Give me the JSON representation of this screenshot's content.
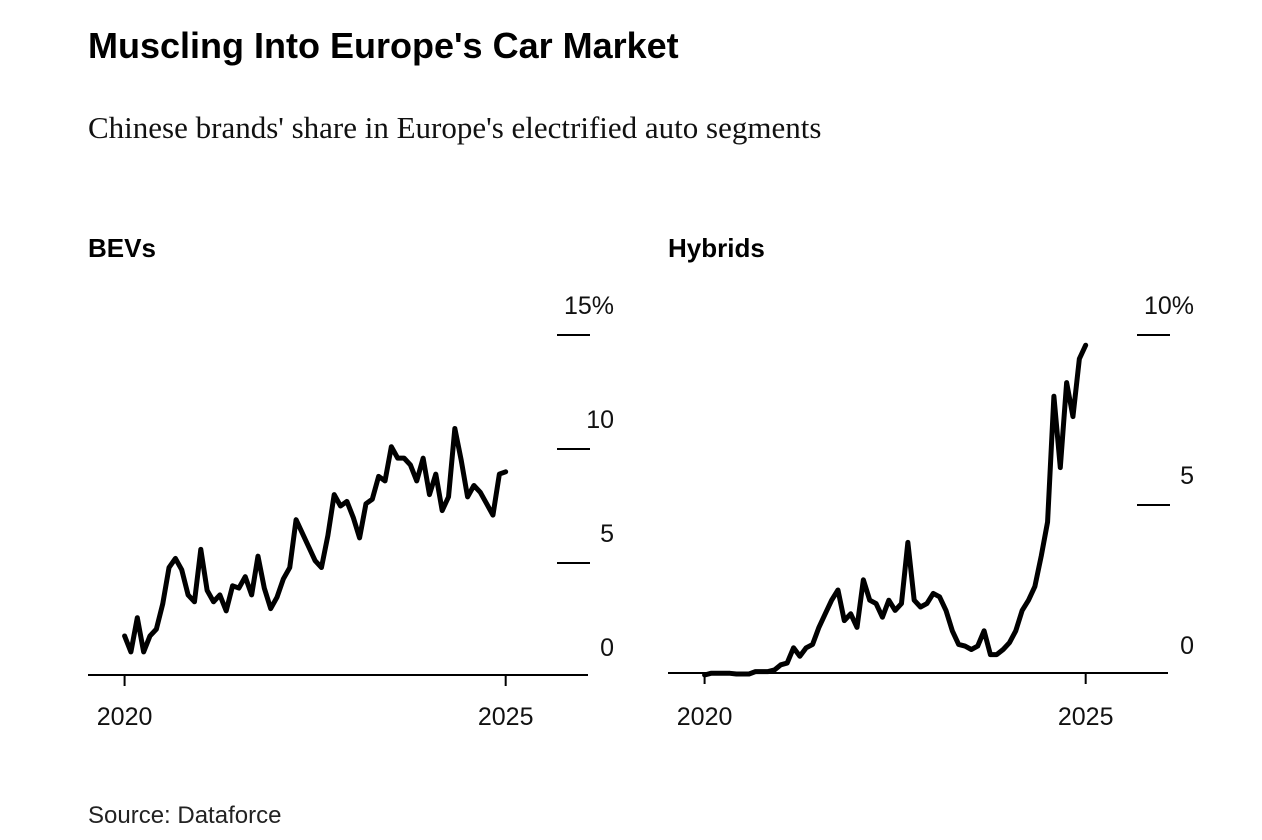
{
  "title": "Muscling Into Europe's Car Market",
  "subtitle": "Chinese brands' share in Europe's electrified auto segments",
  "source": "Source: Dataforce",
  "chart_data": [
    {
      "type": "line",
      "title": "BEVs",
      "color": "#000000",
      "xlim": [
        2019.52,
        2026.08
      ],
      "xticks": [
        2020,
        2025
      ],
      "ylim": [
        0,
        15
      ],
      "yticks": [
        0,
        5,
        10,
        {
          "value": 15,
          "label": "15%"
        }
      ],
      "x": [
        2020,
        2020.083,
        2020.167,
        2020.25,
        2020.333,
        2020.417,
        2020.5,
        2020.583,
        2020.667,
        2020.75,
        2020.833,
        2020.917,
        2021,
        2021.083,
        2021.167,
        2021.25,
        2021.333,
        2021.417,
        2021.5,
        2021.583,
        2021.667,
        2021.75,
        2021.833,
        2021.917,
        2022,
        2022.083,
        2022.167,
        2022.25,
        2022.333,
        2022.417,
        2022.5,
        2022.583,
        2022.667,
        2022.75,
        2022.833,
        2022.917,
        2023,
        2023.083,
        2023.167,
        2023.25,
        2023.333,
        2023.417,
        2023.5,
        2023.583,
        2023.667,
        2023.75,
        2023.833,
        2023.917,
        2024,
        2024.083,
        2024.167,
        2024.25,
        2024.333,
        2024.417,
        2024.5,
        2024.583,
        2024.667,
        2024.75,
        2024.833,
        2024.917,
        2025
      ],
      "series": [
        {
          "name": "BEVs",
          "color": "#000000",
          "values": [
            1.8,
            1.1,
            2.6,
            1.1,
            1.8,
            2.1,
            3.2,
            4.8,
            5.2,
            4.7,
            3.6,
            3.3,
            5.6,
            3.8,
            3.3,
            3.6,
            2.9,
            4.0,
            3.9,
            4.4,
            3.6,
            5.3,
            3.9,
            3.0,
            3.5,
            4.3,
            4.8,
            6.9,
            6.3,
            5.7,
            5.1,
            4.8,
            6.2,
            8.0,
            7.5,
            7.7,
            7.0,
            6.1,
            7.6,
            7.8,
            8.8,
            8.6,
            10.1,
            9.6,
            9.6,
            9.3,
            8.6,
            9.6,
            8.0,
            8.9,
            7.3,
            7.9,
            10.9,
            9.5,
            7.9,
            8.4,
            8.1,
            7.6,
            7.1,
            8.9,
            9.0
          ]
        }
      ]
    },
    {
      "type": "line",
      "title": "Hybrids",
      "color": "#000000",
      "xlim": [
        2019.52,
        2026.08
      ],
      "xticks": [
        2020,
        2025
      ],
      "ylim": [
        0,
        10
      ],
      "yticks": [
        0,
        5,
        {
          "value": 10,
          "label": "10%"
        }
      ],
      "x": [
        2020,
        2020.083,
        2020.167,
        2020.25,
        2020.333,
        2020.417,
        2020.5,
        2020.583,
        2020.667,
        2020.75,
        2020.833,
        2020.917,
        2021,
        2021.083,
        2021.167,
        2021.25,
        2021.333,
        2021.417,
        2021.5,
        2021.583,
        2021.667,
        2021.75,
        2021.833,
        2021.917,
        2022,
        2022.083,
        2022.167,
        2022.25,
        2022.333,
        2022.417,
        2022.5,
        2022.583,
        2022.667,
        2022.75,
        2022.833,
        2022.917,
        2023,
        2023.083,
        2023.167,
        2023.25,
        2023.333,
        2023.417,
        2023.5,
        2023.583,
        2023.667,
        2023.75,
        2023.833,
        2023.917,
        2024,
        2024.083,
        2024.167,
        2024.25,
        2024.333,
        2024.417,
        2024.5,
        2024.583,
        2024.667,
        2024.75,
        2024.833,
        2024.917,
        2025
      ],
      "series": [
        {
          "name": "Hybrids",
          "color": "#000000",
          "values": [
            0,
            0.05,
            0.05,
            0.05,
            0.05,
            0.03,
            0.03,
            0.03,
            0.1,
            0.1,
            0.1,
            0.15,
            0.3,
            0.35,
            0.8,
            0.55,
            0.8,
            0.9,
            1.4,
            1.8,
            2.2,
            2.5,
            1.6,
            1.8,
            1.4,
            2.8,
            2.2,
            2.1,
            1.7,
            2.2,
            1.9,
            2.1,
            3.9,
            2.2,
            2.0,
            2.1,
            2.4,
            2.3,
            1.9,
            1.3,
            0.9,
            0.85,
            0.75,
            0.85,
            1.3,
            0.6,
            0.6,
            0.75,
            0.95,
            1.3,
            1.9,
            2.2,
            2.6,
            3.5,
            4.5,
            8.2,
            6.1,
            8.6,
            7.6,
            9.3,
            9.7
          ]
        }
      ]
    }
  ]
}
